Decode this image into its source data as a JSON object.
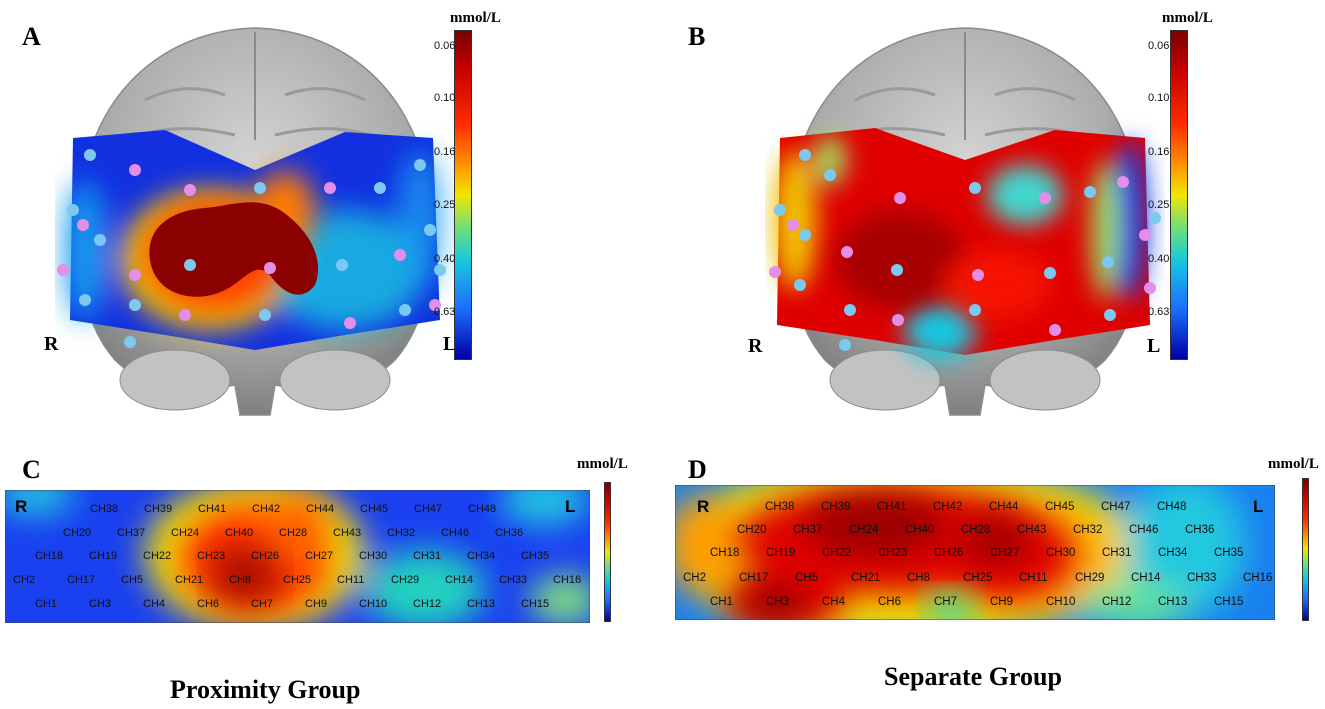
{
  "panels": {
    "A": {
      "letter": "A",
      "right_label": "R",
      "left_label": "L",
      "unit": "mmol/L",
      "ticks": [
        "0.06",
        "0.10",
        "0.16",
        "0.25",
        "0.40",
        "0.63"
      ]
    },
    "B": {
      "letter": "B",
      "right_label": "R",
      "left_label": "L",
      "unit": "mmol/L",
      "ticks": [
        "0.06",
        "0.10",
        "0.16",
        "0.25",
        "0.40",
        "0.63"
      ]
    },
    "C": {
      "letter": "C",
      "right_label": "R",
      "left_label": "L",
      "unit": "mmol/L"
    },
    "D": {
      "letter": "D",
      "right_label": "R",
      "left_label": "L",
      "unit": "mmol/L"
    }
  },
  "group_labels": {
    "proximity": "Proximity Group",
    "separate": "Separate Group"
  },
  "channel_rows": [
    [
      "CH38",
      "CH39",
      "CH41",
      "CH42",
      "CH44",
      "CH45",
      "CH47",
      "CH48"
    ],
    [
      "CH20",
      "CH37",
      "CH24",
      "CH40",
      "CH28",
      "CH43",
      "CH32",
      "CH46",
      "CH36"
    ],
    [
      "CH18",
      "CH19",
      "CH22",
      "CH23",
      "CH26",
      "CH27",
      "CH30",
      "CH31",
      "CH34",
      "CH35"
    ],
    [
      "CH2",
      "CH17",
      "CH5",
      "CH21",
      "CH8",
      "CH25",
      "CH11",
      "CH29",
      "CH14",
      "CH33",
      "CH16"
    ],
    [
      "CH1",
      "CH3",
      "CH4",
      "CH6",
      "CH7",
      "CH9",
      "CH10",
      "CH12",
      "CH13",
      "CH15"
    ]
  ],
  "colors": {
    "dark_red": "#8b0000",
    "red": "#e00000",
    "orange": "#ff8c00",
    "yellow": "#f0e600",
    "cyan": "#18c8e0",
    "blue": "#1a4cff",
    "navy": "#0000a0",
    "brain_gray": "#b4b4b4",
    "optode_source": "#e38ee8",
    "optode_detector": "#7cc8f0"
  }
}
